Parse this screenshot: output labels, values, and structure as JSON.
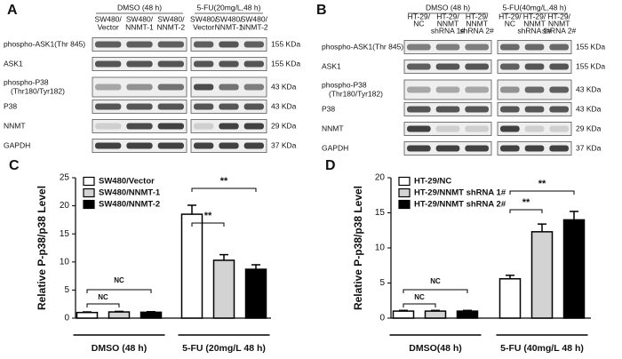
{
  "blots": [
    {
      "panel": "A",
      "groups": [
        "DMSO (48 h)",
        "5-FU(20mg/L,48 h)"
      ],
      "lanes": [
        [
          "SW480/",
          "Vector"
        ],
        [
          "SW480/",
          "NNMT-1"
        ],
        [
          "SW480/",
          "NNMT-2"
        ]
      ],
      "rows": [
        {
          "label": [
            "phospho-ASK1(Thr 845)"
          ],
          "size": "155 KDa"
        },
        {
          "label": [
            "ASK1"
          ],
          "size": "155 KDa"
        },
        {
          "label": [
            "phospho-P38",
            "(Thr180/Tyr182)"
          ],
          "size": "43 KDa"
        },
        {
          "label": [
            "P38"
          ],
          "size": "43 KDa"
        },
        {
          "label": [
            "NNMT"
          ],
          "size": "29 KDa"
        },
        {
          "label": [
            "GAPDH"
          ],
          "size": "37 KDa"
        }
      ]
    },
    {
      "panel": "B",
      "groups": [
        "DMSO (48 h)",
        "5-FU(40mg/L,48 h)"
      ],
      "lanes": [
        [
          "HT-29/",
          "NC"
        ],
        [
          "HT-29/",
          "NNMT",
          "shRNA 1#"
        ],
        [
          "HT-29/",
          "NNMT",
          "shRNA 2#"
        ]
      ],
      "rows": [
        {
          "label": [
            "phospho-ASK1(Thr 845)"
          ],
          "size": "155 KDa"
        },
        {
          "label": [
            "ASK1"
          ],
          "size": "155 KDa"
        },
        {
          "label": [
            "phospho-P38",
            "(Thr180/Tyr182)"
          ],
          "size": "43 KDa"
        },
        {
          "label": [
            "P38"
          ],
          "size": "43 KDa"
        },
        {
          "label": [
            "NNMT"
          ],
          "size": "29 KDa"
        },
        {
          "label": [
            "GAPDH"
          ],
          "size": "37 KDa"
        }
      ]
    }
  ],
  "chart_data": [
    {
      "type": "bar",
      "panel": "C",
      "y_label": "Relative P-p38/p38 Level",
      "categories": [
        "DMSO (48 h)",
        "5-FU (20mg/L 48 h)"
      ],
      "series": [
        {
          "name": "SW480/Vector",
          "color": "#ffffff",
          "values": [
            1.0,
            18.5
          ],
          "errors": [
            0.1,
            1.6
          ]
        },
        {
          "name": "SW480/NNMT-1",
          "color": "#d3d3d3",
          "values": [
            1.1,
            10.3
          ],
          "errors": [
            0.1,
            1.0
          ]
        },
        {
          "name": "SW480/NNMT-2",
          "color": "#000000",
          "values": [
            1.05,
            8.7
          ],
          "errors": [
            0.1,
            0.8
          ]
        }
      ],
      "ylim": [
        0,
        25
      ],
      "yticks": [
        0,
        5,
        10,
        15,
        20,
        25
      ],
      "annotations": [
        "NC",
        "NC",
        "**",
        "**"
      ],
      "legend": "upper left"
    },
    {
      "type": "bar",
      "panel": "D",
      "y_label": "Relative P-p38/p38 Level",
      "categories": [
        "DMSO(48 h)",
        "5-FU (40mg/L 48 h)"
      ],
      "series": [
        {
          "name": "HT-29/NC",
          "color": "#ffffff",
          "values": [
            1.0,
            5.6
          ],
          "errors": [
            0.1,
            0.5
          ]
        },
        {
          "name": "HT-29/NNMT shRNA 1#",
          "color": "#d3d3d3",
          "values": [
            1.0,
            12.3
          ],
          "errors": [
            0.1,
            1.1
          ]
        },
        {
          "name": "HT-29/NNMT shRNA 2#",
          "color": "#000000",
          "values": [
            1.0,
            14.0
          ],
          "errors": [
            0.1,
            1.2
          ]
        }
      ],
      "ylim": [
        0,
        20
      ],
      "yticks": [
        0,
        5,
        10,
        15,
        20
      ],
      "annotations": [
        "NC",
        "NC",
        "**",
        "**"
      ],
      "legend": "upper left"
    }
  ]
}
